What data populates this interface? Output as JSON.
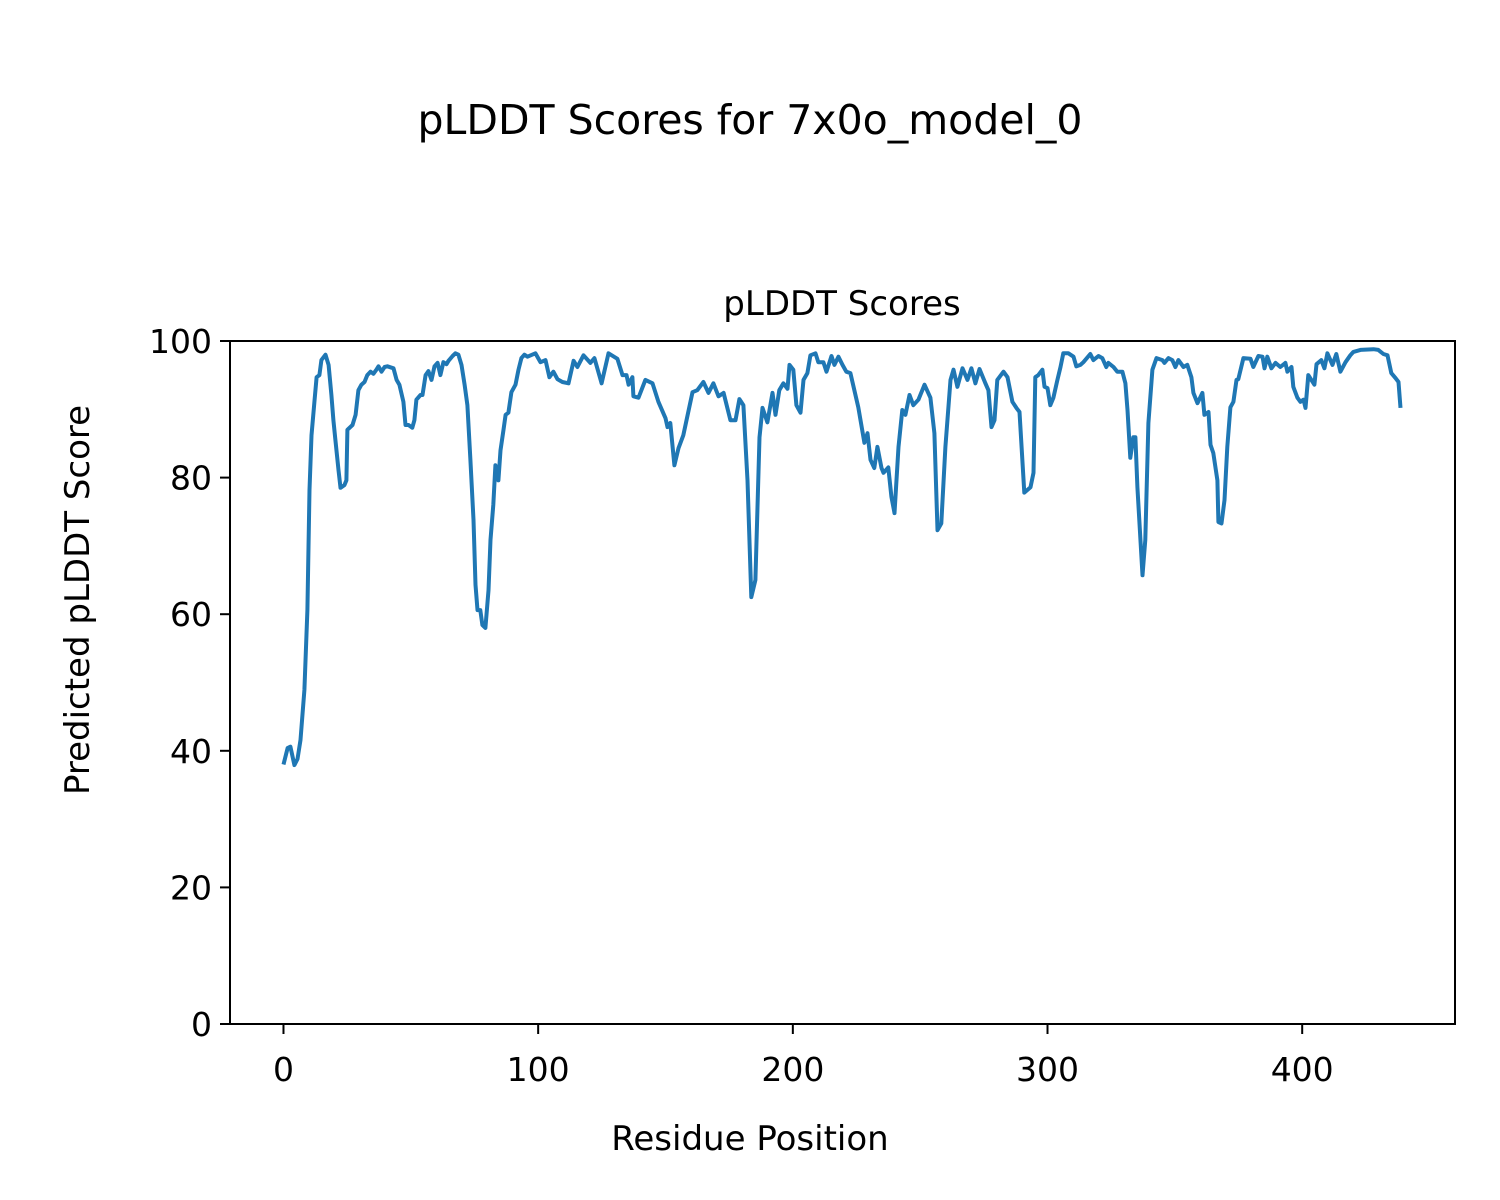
{
  "chart_data": {
    "type": "line",
    "suptitle": "pLDDT Scores for 7x0o_model_0",
    "title": "pLDDT Scores",
    "xlabel": "Residue Position",
    "ylabel": "Predicted pLDDT Score",
    "xlim": [
      -21,
      460
    ],
    "ylim": [
      0,
      100
    ],
    "xticks": [
      0,
      100,
      200,
      300,
      400
    ],
    "xtick_labels": [
      "0",
      "100",
      "200",
      "300",
      "400"
    ],
    "yticks": [
      0,
      20,
      40,
      60,
      80,
      100
    ],
    "ytick_labels": [
      "0",
      "20",
      "40",
      "60",
      "80",
      "100"
    ],
    "grid": false,
    "line_color": "#1f77b4",
    "series": [
      {
        "name": "pLDDT",
        "x": [
          0,
          1.6,
          2.7,
          4.3,
          5.5,
          6.7,
          8.2,
          9.4,
          10.2,
          11,
          12.2,
          13,
          14.1,
          14.9,
          16.5,
          17.7,
          18.8,
          19.6,
          20.4,
          21.6,
          22.4,
          23.9,
          24.7,
          25.1,
          27.1,
          28.3,
          29.4,
          30.6,
          31.8,
          32.9,
          34.2,
          35.3,
          36.5,
          37.3,
          38.5,
          39.7,
          40.8,
          43.2,
          44.4,
          45.5,
          47.1,
          47.9,
          49.1,
          50.6,
          51.4,
          52.2,
          53.8,
          54.6,
          55.8,
          56.9,
          58.1,
          59.3,
          60.5,
          61.6,
          62.8,
          64,
          64.8,
          66.4,
          67.5,
          68.7,
          69.9,
          71.1,
          72.2,
          73.4,
          74.6,
          75.4,
          76.2,
          77.3,
          78.1,
          79.3,
          80.5,
          81.3,
          82.4,
          83.2,
          84.4,
          85.2,
          86.4,
          87.2,
          88.3,
          89.5,
          91.1,
          92.3,
          93.4,
          94.6,
          95.8,
          98.9,
          100.9,
          102.9,
          104.4,
          106,
          107.6,
          109.5,
          111.9,
          113.9,
          115.4,
          117.8,
          120.5,
          122.1,
          124.9,
          127.6,
          131.1,
          133.1,
          134.7,
          135.5,
          137,
          137.4,
          139.4,
          142.1,
          144.9,
          147.2,
          150,
          150.8,
          151.9,
          153.5,
          155.1,
          157,
          160.6,
          162.5,
          164.9,
          166.9,
          168.8,
          170.8,
          172.8,
          175.5,
          177.5,
          179,
          180.6,
          182.2,
          183.7,
          185.3,
          186.9,
          188.1,
          190,
          192,
          193.2,
          194.7,
          196.3,
          197.9,
          198.7,
          200.2,
          201.4,
          203,
          204.2,
          205.7,
          206.9,
          208.9,
          210,
          212,
          213.2,
          215.2,
          216.3,
          217.9,
          219.5,
          221,
          222.6,
          225.7,
          228.1,
          229.3,
          230.5,
          232,
          233.2,
          234.8,
          235.6,
          237.5,
          238.7,
          239.9,
          241.5,
          243,
          244.2,
          245.8,
          247.3,
          249.3,
          251.7,
          254,
          255.6,
          256.8,
          258.3,
          259.9,
          261.9,
          263.1,
          264.6,
          266.6,
          268.6,
          270.1,
          271.7,
          273.3,
          275.6,
          276.8,
          278,
          279.2,
          280.3,
          282.7,
          284.3,
          286.2,
          287.8,
          289,
          290.9,
          293.3,
          294.5,
          295.2,
          296.4,
          298,
          298.8,
          300,
          301.1,
          302.3,
          303.9,
          305.1,
          306.2,
          308.2,
          310.2,
          311.3,
          312.9,
          314.1,
          316.8,
          318,
          320,
          321.5,
          323.1,
          323.9,
          325.9,
          327.4,
          329.4,
          330.6,
          331.4,
          332.5,
          333.7,
          334.5,
          335.3,
          337.3,
          338.4,
          339.6,
          341.2,
          342.8,
          345.1,
          345.9,
          347.5,
          349,
          350.2,
          351.4,
          353.4,
          354.9,
          356.5,
          357.3,
          358.9,
          360.8,
          361.6,
          363.2,
          364,
          365.1,
          366.7,
          367.1,
          368.3,
          369.5,
          370.6,
          371.8,
          373,
          374.2,
          374.9,
          376.9,
          379.7,
          380.8,
          382.8,
          384.4,
          385.2,
          386.3,
          387.9,
          389.5,
          391.4,
          393.4,
          394.2,
          395.8,
          396.5,
          398.1,
          399.3,
          400.5,
          401.3,
          402.4,
          404.8,
          405.6,
          407.5,
          408.7,
          409.9,
          411.9,
          413.4,
          415,
          417,
          418.9,
          420.1,
          422.9,
          428,
          429.9,
          431.9,
          433.5,
          435,
          436.6,
          437.8,
          438.6
        ],
        "y": [
          38,
          40.4,
          40.6,
          37.9,
          38.8,
          41.6,
          48.9,
          60.6,
          78.2,
          86.2,
          91.4,
          94.7,
          95,
          97.2,
          98,
          96.5,
          92.1,
          88.4,
          85.5,
          81.1,
          78.5,
          78.9,
          79.6,
          87,
          87.7,
          89.2,
          92.8,
          93.6,
          94,
          95,
          95.5,
          95.2,
          95.8,
          96.3,
          95.5,
          96.2,
          96.3,
          96,
          94.3,
          93.6,
          91.1,
          87.7,
          87.7,
          87.3,
          88.4,
          91.4,
          92.1,
          92.1,
          95,
          95.6,
          94.3,
          96.3,
          96.8,
          95,
          96.9,
          96.6,
          97.1,
          97.8,
          98.2,
          98,
          96.5,
          93.6,
          90.6,
          82.6,
          73.8,
          64.3,
          60.6,
          60.6,
          58.4,
          58,
          63.5,
          70.9,
          76,
          81.8,
          79.6,
          84,
          87,
          89.2,
          89.5,
          92.5,
          93.6,
          95.8,
          97.5,
          98,
          97.7,
          98.2,
          96.9,
          97.2,
          94.7,
          95.5,
          94.4,
          94,
          93.8,
          97.1,
          96.2,
          97.9,
          96.8,
          97.5,
          93.8,
          98.2,
          97.4,
          95,
          95,
          93.6,
          94.7,
          91.9,
          91.7,
          94.3,
          93.8,
          91.1,
          88.7,
          87.4,
          88,
          81.8,
          84.3,
          86.2,
          92.5,
          92.8,
          94,
          92.4,
          93.8,
          91.9,
          92.4,
          88.4,
          88.4,
          91.5,
          90.6,
          79.6,
          62.5,
          65,
          85.9,
          90.2,
          88.1,
          92.4,
          89.2,
          92.8,
          93.8,
          93,
          96.5,
          95.8,
          90.6,
          89.5,
          94.3,
          95.3,
          97.9,
          98.2,
          96.9,
          96.9,
          95.5,
          97.8,
          96.5,
          97.7,
          96.5,
          95.5,
          95.3,
          90.3,
          85.1,
          86.5,
          82.6,
          81.4,
          84.5,
          81.4,
          80.7,
          81.5,
          77.2,
          74.8,
          84.5,
          89.9,
          89.2,
          92.1,
          90.6,
          91.4,
          93.6,
          91.7,
          86.5,
          72.3,
          73.3,
          84.5,
          94.3,
          95.8,
          93.3,
          96,
          94.3,
          96,
          93.8,
          95.9,
          93.8,
          92.8,
          87.4,
          88.4,
          94.3,
          95.5,
          94.7,
          91.1,
          90.2,
          89.6,
          77.8,
          78.6,
          80.7,
          94.7,
          95,
          95.8,
          93.3,
          93.1,
          90.6,
          91.7,
          94.3,
          96.2,
          98.2,
          98.2,
          97.7,
          96.3,
          96.5,
          96.9,
          98.1,
          97.2,
          97.8,
          97.5,
          96.2,
          96.8,
          96.2,
          95.5,
          95.5,
          93.8,
          89.9,
          82.9,
          85.9,
          85.9,
          78.6,
          65.7,
          70.9,
          88,
          95.8,
          97.5,
          97.2,
          96.8,
          97.5,
          97.2,
          96.2,
          97.2,
          96.2,
          96.5,
          94.7,
          92.4,
          90.9,
          92.4,
          89.2,
          89.6,
          84.8,
          83.6,
          79.6,
          73.5,
          73.3,
          76.7,
          84.5,
          90.3,
          91.1,
          94.3,
          94.4,
          97.5,
          97.4,
          96.2,
          97.8,
          97.7,
          96,
          97.7,
          96,
          96.8,
          96.2,
          96.8,
          95.5,
          96.2,
          93.3,
          91.7,
          91.1,
          91.4,
          90.2,
          95,
          93.6,
          96.6,
          97.2,
          96,
          98.2,
          96.5,
          98.1,
          95.5,
          96.9,
          97.9,
          98.4,
          98.7,
          98.8,
          98.7,
          98.1,
          97.9,
          95.3,
          94.6,
          94,
          90.2
        ]
      }
    ]
  }
}
